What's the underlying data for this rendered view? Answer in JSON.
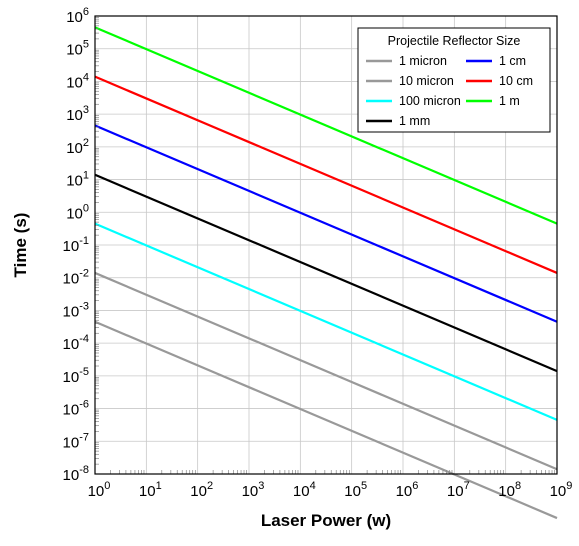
{
  "chart_data": {
    "type": "line",
    "title": "",
    "xlabel": "Laser Power (w)",
    "ylabel": "Time (s)",
    "x_scale": "log",
    "y_scale": "log",
    "xlim": [
      1,
      1000000000
    ],
    "ylim": [
      1e-08,
      1000000
    ],
    "grid": true,
    "legend_title": "Projectile Reflector Size",
    "legend_position": "top-right",
    "x_ticks": [
      {
        "base": "10",
        "exp": "0"
      },
      {
        "base": "10",
        "exp": "1"
      },
      {
        "base": "10",
        "exp": "2"
      },
      {
        "base": "10",
        "exp": "3"
      },
      {
        "base": "10",
        "exp": "4"
      },
      {
        "base": "10",
        "exp": "5"
      },
      {
        "base": "10",
        "exp": "6"
      },
      {
        "base": "10",
        "exp": "7"
      },
      {
        "base": "10",
        "exp": "8"
      },
      {
        "base": "10",
        "exp": "9"
      }
    ],
    "y_ticks": [
      {
        "base": "10",
        "exp": "-8"
      },
      {
        "base": "10",
        "exp": "-7"
      },
      {
        "base": "10",
        "exp": "-6"
      },
      {
        "base": "10",
        "exp": "-5"
      },
      {
        "base": "10",
        "exp": "-4"
      },
      {
        "base": "10",
        "exp": "-3"
      },
      {
        "base": "10",
        "exp": "-2"
      },
      {
        "base": "10",
        "exp": "-1"
      },
      {
        "base": "10",
        "exp": "0"
      },
      {
        "base": "10",
        "exp": "1"
      },
      {
        "base": "10",
        "exp": "2"
      },
      {
        "base": "10",
        "exp": "3"
      },
      {
        "base": "10",
        "exp": "4"
      },
      {
        "base": "10",
        "exp": "5"
      },
      {
        "base": "10",
        "exp": "6"
      }
    ],
    "series": [
      {
        "name": "1 micron",
        "color": "#999999",
        "x": [
          1,
          1000000000
        ],
        "y": [
          0.00045,
          4.5e-10
        ]
      },
      {
        "name": "10 micron",
        "color": "#999999",
        "x": [
          1,
          1000000000
        ],
        "y": [
          0.014,
          1.4e-08
        ]
      },
      {
        "name": "100 micron",
        "color": "#00ffff",
        "x": [
          1,
          1000000000
        ],
        "y": [
          0.45,
          4.5e-07
        ]
      },
      {
        "name": "1 mm",
        "color": "#000000",
        "x": [
          1,
          1000000000
        ],
        "y": [
          14,
          1.4e-05
        ]
      },
      {
        "name": "1 cm",
        "color": "#0000ff",
        "x": [
          1,
          1000000000
        ],
        "y": [
          450,
          0.00045
        ]
      },
      {
        "name": "10 cm",
        "color": "#ff0000",
        "x": [
          1,
          1000000000
        ],
        "y": [
          14000,
          0.014
        ]
      },
      {
        "name": "1 m",
        "color": "#00ff00",
        "x": [
          1,
          1000000000
        ],
        "y": [
          450000,
          0.45
        ]
      }
    ],
    "legend_order": [
      [
        "1 micron",
        "1 cm"
      ],
      [
        "10 micron",
        "10 cm"
      ],
      [
        "100 micron",
        "1 m"
      ],
      [
        "1 mm",
        null
      ]
    ]
  }
}
